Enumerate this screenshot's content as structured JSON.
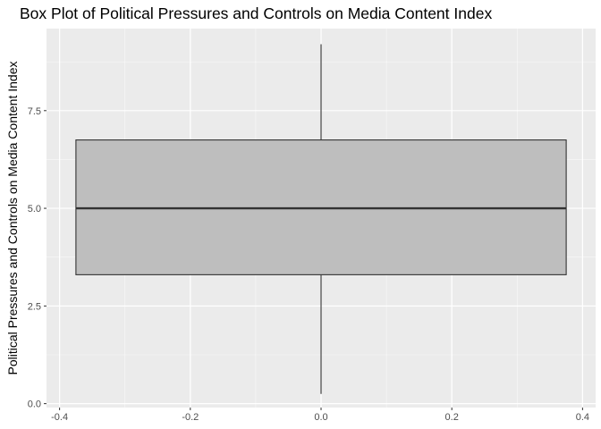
{
  "chart_data": {
    "type": "box",
    "title": "Box Plot of Political Pressures and Controls on Media Content Index",
    "xlabel": "",
    "ylabel": "Political Pressures and Controls on Media Content Index",
    "xlim": [
      -0.42,
      0.42
    ],
    "ylim": [
      -0.1,
      9.6
    ],
    "x_ticks": [
      -0.4,
      -0.2,
      0.0,
      0.2,
      0.4
    ],
    "x_tick_labels": [
      "-0.4",
      "-0.2",
      "0.0",
      "0.2",
      "0.4"
    ],
    "y_ticks": [
      0.0,
      2.5,
      5.0,
      7.5
    ],
    "y_tick_labels": [
      "0.0",
      "2.5",
      "5.0",
      "7.5"
    ],
    "grid": true,
    "box": {
      "x_center": 0.0,
      "half_width": 0.375,
      "min": 0.25,
      "q1": 3.3,
      "median": 5.0,
      "q3": 6.75,
      "max": 9.2
    },
    "colors": {
      "panel": "#ebebeb",
      "grid_major": "#ffffff",
      "box_fill": "#bebebe",
      "box_stroke": "#333333"
    }
  }
}
